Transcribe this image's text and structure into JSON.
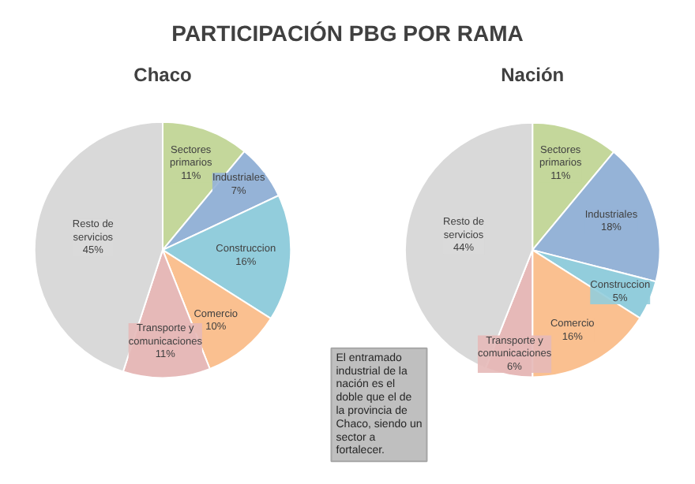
{
  "chart_data": [
    {
      "type": "pie",
      "title": "PARTICIPACIÓN PBG POR RAMA",
      "subtitle": "Chaco",
      "value_labels": [
        "11%",
        "7%",
        "16%",
        "10%",
        "11%",
        "45%"
      ],
      "categories": [
        "Sectores primarios",
        "Industriales",
        "Construccion",
        "Comercio",
        "Transporte y comunicaciones",
        "Resto de servicios"
      ],
      "values": [
        11,
        7,
        16,
        10,
        11,
        45
      ],
      "colors": [
        "#c4d79b",
        "#95b3d7",
        "#92cddc",
        "#fac090",
        "#e6b9b8",
        "#d9d9d9"
      ]
    },
    {
      "type": "pie",
      "title": "Nación",
      "value_labels": [
        "11%",
        "18%",
        "5%",
        "16%",
        "6%",
        "44%"
      ],
      "categories": [
        "Sectores primarios",
        "Industriales",
        "Construccion",
        "Comercio",
        "Transporte y comunicaciones",
        "Resto de servicios"
      ],
      "values": [
        11,
        18,
        5,
        16,
        6,
        44
      ],
      "colors": [
        "#c4d79b",
        "#95b3d7",
        "#92cddc",
        "#fac090",
        "#e6b9b8",
        "#d9d9d9"
      ],
      "annotations": [
        "El entramado industrial de la nación es el doble que el de la provincia de Chaco, siendo un sector a fortalecer."
      ]
    }
  ]
}
